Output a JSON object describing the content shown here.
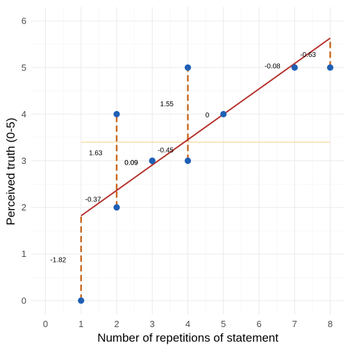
{
  "chart_data": {
    "type": "scatter",
    "xlabel": "Number of repetitions of statement",
    "ylabel": "Perceived truth (0-5)",
    "xlim": [
      -0.4,
      8.4
    ],
    "ylim": [
      -0.3,
      6.3
    ],
    "x_ticks": [
      0,
      1,
      2,
      3,
      4,
      5,
      6,
      7,
      8
    ],
    "y_ticks": [
      0,
      1,
      2,
      3,
      4,
      5,
      6
    ],
    "grid": true,
    "points": [
      {
        "x": 1,
        "y": 0
      },
      {
        "x": 2,
        "y": 2
      },
      {
        "x": 2,
        "y": 4
      },
      {
        "x": 3,
        "y": 3
      },
      {
        "x": 3,
        "y": 3
      },
      {
        "x": 4,
        "y": 3
      },
      {
        "x": 4,
        "y": 5
      },
      {
        "x": 5,
        "y": 4
      },
      {
        "x": 7,
        "y": 5
      },
      {
        "x": 8,
        "y": 5
      }
    ],
    "fit_line": {
      "x_start": 1,
      "y_start": 1.82,
      "x_end": 8,
      "y_end": 5.63
    },
    "mean_line": {
      "x_start": 1,
      "x_end": 8,
      "y": 3.4
    },
    "residuals": [
      {
        "x": 1,
        "y_from": 0,
        "y_to": 1.82,
        "label": "-1.82",
        "label_x": 0.58,
        "label_y": 0.88
      },
      {
        "x": 2,
        "y_from": 2,
        "y_to": 2.37,
        "label": "-0.37",
        "label_x": 1.56,
        "label_y": 2.17
      },
      {
        "x": 2,
        "y_from": 2.37,
        "y_to": 4,
        "label": "1.63",
        "label_x": 1.6,
        "label_y": 3.17
      },
      {
        "x": 3,
        "y_from": 2.91,
        "y_to": 3,
        "label": "0.09",
        "label_x": 2.6,
        "label_y": 2.96
      },
      {
        "x": 3,
        "y_from": 2.91,
        "y_to": 3,
        "label": "0.09",
        "label_x": 2.6,
        "label_y": 2.96
      },
      {
        "x": 4,
        "y_from": 3,
        "y_to": 3.45,
        "label": "-0.45",
        "label_x": 3.6,
        "label_y": 3.23
      },
      {
        "x": 4,
        "y_from": 3.45,
        "y_to": 5,
        "label": "1.55",
        "label_x": 3.6,
        "label_y": 4.22
      },
      {
        "x": 5,
        "y_from": 4,
        "y_to": 4,
        "label": "0",
        "label_x": 4.6,
        "label_y": 3.98
      },
      {
        "x": 7,
        "y_from": 5,
        "y_to": 5.08,
        "label": "-0.08",
        "label_x": 6.6,
        "label_y": 5.03
      },
      {
        "x": 8,
        "y_from": 5,
        "y_to": 5.63,
        "label": "-0.63",
        "label_x": 7.6,
        "label_y": 5.28
      }
    ],
    "colors": {
      "points": "#1f5fb5",
      "fit_line": "#b5332e",
      "mean_line": "#f7dfb3",
      "residuals": "#c8661b"
    }
  }
}
